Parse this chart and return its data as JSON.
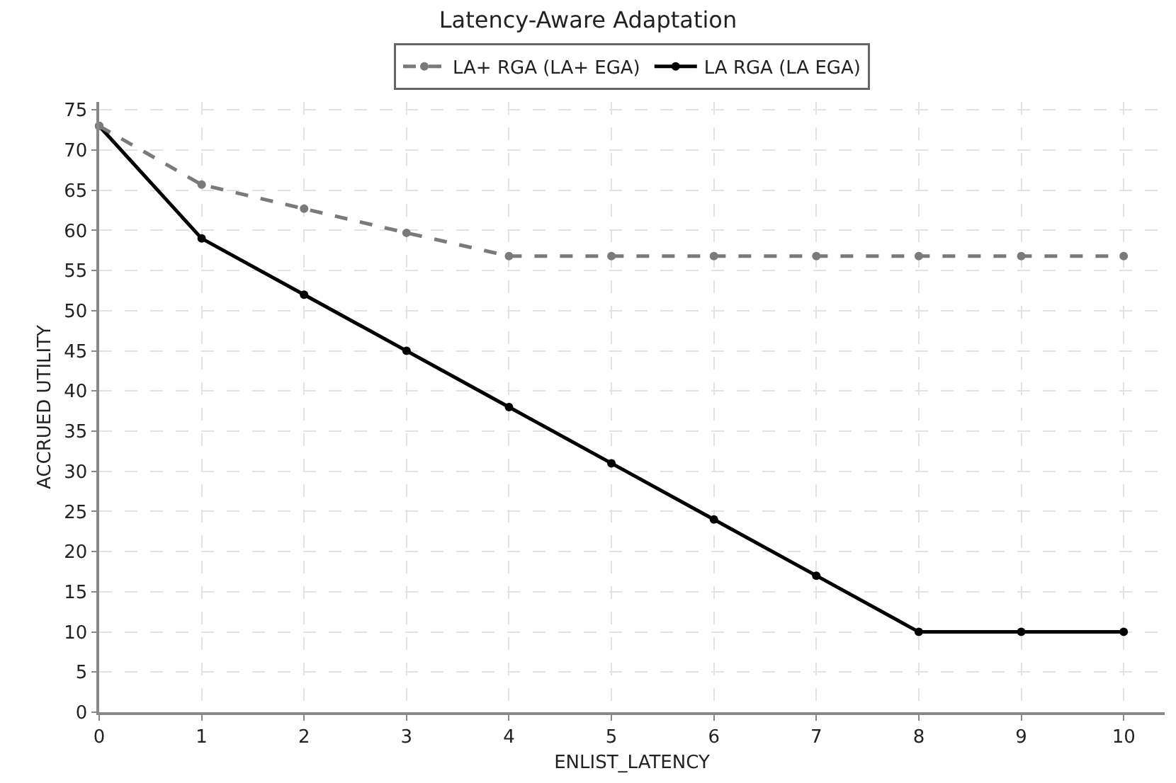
{
  "chart_data": {
    "type": "line",
    "title": "Latency-Aware Adaptation",
    "xlabel": "ENLIST_LATENCY",
    "ylabel": "ACCRUED UTILITY",
    "x": [
      0,
      1,
      2,
      3,
      4,
      5,
      6,
      7,
      8,
      9,
      10
    ],
    "series": [
      {
        "name": "LA+ RGA (LA+ EGA)",
        "color": "#7a7a7a",
        "line_style": "dashed",
        "values": [
          73,
          65.7,
          62.7,
          59.7,
          56.8,
          56.8,
          56.8,
          56.8,
          56.8,
          56.8,
          56.8
        ]
      },
      {
        "name": "LA RGA (LA EGA)",
        "color": "#000000",
        "line_style": "solid",
        "values": [
          73,
          59,
          52,
          45,
          38,
          31,
          24,
          17,
          10,
          10,
          10
        ]
      }
    ],
    "xlim": [
      0,
      10.4
    ],
    "ylim": [
      0,
      76
    ],
    "xticks": [
      0,
      1,
      2,
      3,
      4,
      5,
      6,
      7,
      8,
      9,
      10
    ],
    "yticks": [
      0,
      5,
      10,
      15,
      20,
      25,
      30,
      35,
      40,
      45,
      50,
      55,
      60,
      65,
      70,
      75
    ],
    "grid": true,
    "legend": "top",
    "marker": "circle"
  }
}
